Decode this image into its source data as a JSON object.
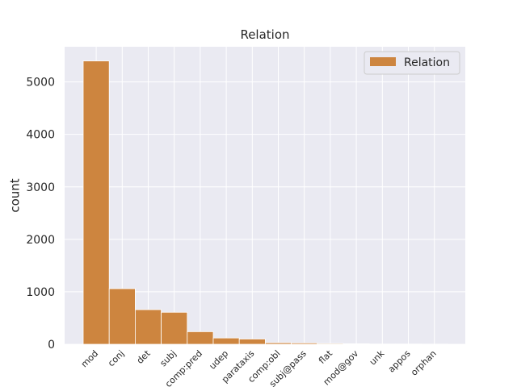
{
  "chart_data": {
    "type": "bar",
    "title": "Relation",
    "xlabel": "",
    "ylabel": "count",
    "categories": [
      "mod",
      "conj",
      "det",
      "subj",
      "comp:pred",
      "udep",
      "parataxis",
      "comp:obl",
      "subj@pass",
      "flat",
      "mod@gov",
      "unk",
      "appos",
      "orphan"
    ],
    "values": [
      5400,
      1060,
      660,
      610,
      240,
      120,
      100,
      30,
      25,
      15,
      10,
      5,
      5,
      3
    ],
    "ylim": [
      0,
      5670
    ],
    "yticks": [
      0,
      1000,
      2000,
      3000,
      4000,
      5000
    ],
    "grid": true,
    "legend": {
      "position": "top-right",
      "entries": [
        "Relation"
      ]
    },
    "colors": {
      "bar": "#cd853f",
      "background": "#eaeaf2",
      "grid": "#ffffff"
    }
  }
}
